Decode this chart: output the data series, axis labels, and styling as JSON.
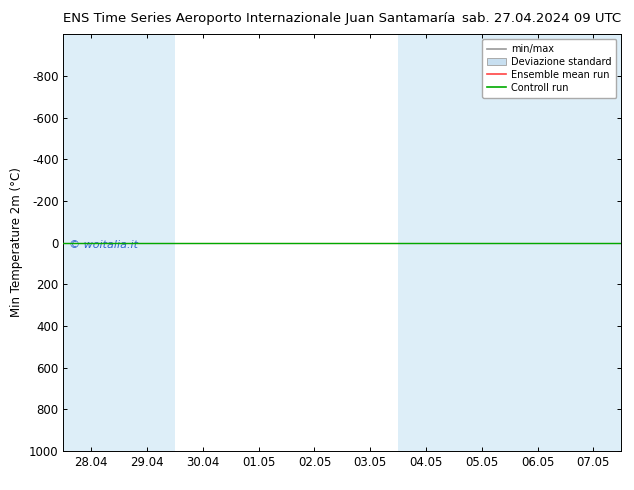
{
  "title_left": "ENS Time Series Aeroporto Internazionale Juan Santamaría",
  "title_right": "sab. 27.04.2024 09 UTC",
  "ylabel": "Min Temperature 2m (°C)",
  "watermark": "© woitalia.it",
  "ylim_top": -1000,
  "ylim_bottom": 1000,
  "yticks": [
    -800,
    -600,
    -400,
    -200,
    0,
    200,
    400,
    600,
    800,
    1000
  ],
  "xtick_labels": [
    "28.04",
    "29.04",
    "30.04",
    "01.05",
    "02.05",
    "03.05",
    "04.05",
    "05.05",
    "06.05",
    "07.05"
  ],
  "xtick_positions": [
    0,
    1,
    2,
    3,
    4,
    5,
    6,
    7,
    8,
    9
  ],
  "shaded_bands": [
    0,
    1,
    6,
    7,
    8,
    9
  ],
  "band_color": "#ddeef8",
  "background_color": "#ffffff",
  "plot_bg_color": "#ffffff",
  "green_line_y": 0,
  "red_line_y": 0,
  "title_fontsize": 9.5,
  "axis_fontsize": 8.5,
  "ylabel_fontsize": 8.5
}
